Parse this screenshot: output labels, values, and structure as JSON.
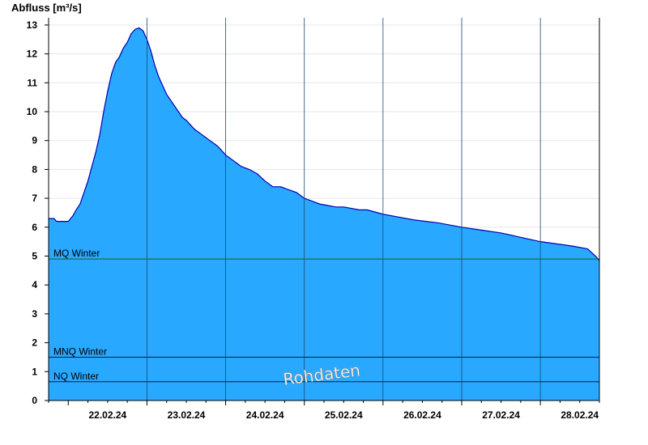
{
  "chart_data": {
    "type": "area",
    "title": "Abfluss [m³/s]",
    "xlabel": "",
    "ylabel": "Abfluss [m³/s]",
    "ylim": [
      0,
      13.3
    ],
    "yticks": [
      "0",
      "1",
      "2",
      "3",
      "4",
      "5",
      "6",
      "7",
      "8",
      "9",
      "10",
      "11",
      "12",
      "13"
    ],
    "xlim": [
      21.75,
      28.75
    ],
    "xticks": [
      {
        "x": 22.5,
        "label": "22.02.24"
      },
      {
        "x": 23.5,
        "label": "23.02.24"
      },
      {
        "x": 24.5,
        "label": "24.02.24"
      },
      {
        "x": 25.5,
        "label": "25.02.24"
      },
      {
        "x": 26.5,
        "label": "26.02.24"
      },
      {
        "x": 27.5,
        "label": "27.02.24"
      },
      {
        "x": 28.5,
        "label": "28.02.24"
      }
    ],
    "day_boundaries": [
      23,
      24,
      25,
      26,
      27,
      28
    ],
    "fill_color": "#29a8ff",
    "line_color": "#0000b0",
    "series": [
      {
        "x": [
          21.75,
          21.82,
          21.85,
          21.9,
          22.0,
          22.06,
          22.1,
          22.15,
          22.2,
          22.25,
          22.3,
          22.35,
          22.4,
          22.45,
          22.5,
          22.55,
          22.6,
          22.65,
          22.7,
          22.75,
          22.8,
          22.85,
          22.9,
          22.95,
          23.0,
          23.05,
          23.1,
          23.15,
          23.2,
          23.25,
          23.3,
          23.35,
          23.4,
          23.45,
          23.5,
          23.55,
          23.6,
          23.65,
          23.7,
          23.75,
          23.8,
          23.85,
          23.9,
          23.95,
          24.0,
          24.05,
          24.1,
          24.15,
          24.2,
          24.3,
          24.4,
          24.5,
          24.6,
          24.7,
          24.8,
          24.9,
          25.0,
          25.1,
          25.2,
          25.3,
          25.4,
          25.5,
          25.7,
          25.8,
          26.0,
          26.2,
          26.4,
          26.7,
          27.0,
          27.25,
          27.5,
          27.75,
          28.0,
          28.4,
          28.6,
          28.7,
          28.75
        ],
        "values": [
          6.3,
          6.3,
          6.2,
          6.2,
          6.2,
          6.4,
          6.6,
          6.8,
          7.2,
          7.6,
          8.1,
          8.6,
          9.2,
          10.0,
          10.7,
          11.3,
          11.7,
          11.9,
          12.2,
          12.4,
          12.7,
          12.85,
          12.9,
          12.8,
          12.5,
          12.1,
          11.6,
          11.2,
          10.9,
          10.6,
          10.4,
          10.2,
          10.0,
          9.8,
          9.7,
          9.55,
          9.4,
          9.3,
          9.2,
          9.1,
          9.0,
          8.9,
          8.8,
          8.65,
          8.5,
          8.4,
          8.3,
          8.2,
          8.1,
          8.0,
          7.85,
          7.6,
          7.4,
          7.4,
          7.3,
          7.2,
          7.0,
          6.9,
          6.8,
          6.75,
          6.7,
          6.7,
          6.6,
          6.6,
          6.45,
          6.35,
          6.25,
          6.15,
          6.0,
          5.9,
          5.8,
          5.65,
          5.5,
          5.35,
          5.25,
          5.0,
          4.85
        ]
      }
    ],
    "reference_lines": [
      {
        "name": "MQ Winter",
        "value": 4.9
      },
      {
        "name": "MNQ Winter",
        "value": 1.5
      },
      {
        "name": "NQ Winter",
        "value": 0.65
      }
    ],
    "watermark": "Rohdaten",
    "grid": true
  }
}
